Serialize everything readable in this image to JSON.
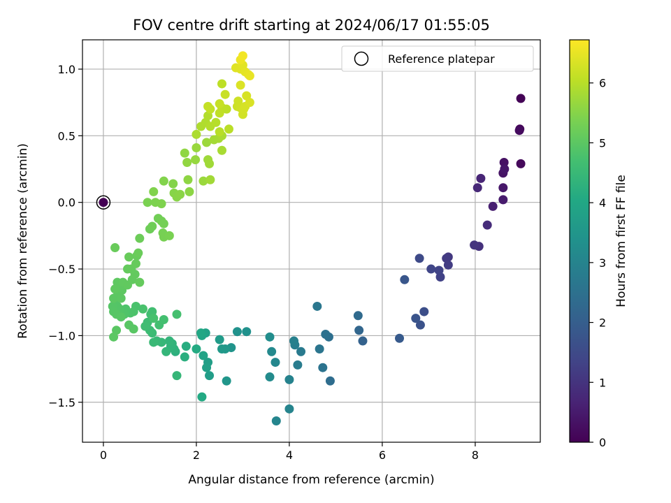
{
  "chart_data": {
    "type": "scatter",
    "title": "FOV centre drift starting at 2024/06/17 01:55:05",
    "xlabel": "Angular distance from reference (arcmin)",
    "ylabel": "Rotation from reference (arcmin)",
    "xlim": [
      -0.45,
      9.4
    ],
    "ylim": [
      -1.8,
      1.22
    ],
    "xticks": [
      0,
      2,
      4,
      6,
      8
    ],
    "xtick_labels": [
      "0",
      "2",
      "4",
      "6",
      "8"
    ],
    "yticks": [
      -1.5,
      -1.0,
      -0.5,
      0.0,
      0.5,
      1.0
    ],
    "ytick_labels": [
      "−1.5",
      "−1.0",
      "−0.5",
      "0.0",
      "0.5",
      "1.0"
    ],
    "grid": true,
    "colormap": "viridis",
    "colorbar": {
      "label": "Hours from first FF file",
      "range": [
        0,
        6.72
      ],
      "ticks": [
        0,
        1,
        2,
        3,
        4,
        5,
        6
      ],
      "tick_labels": [
        "0",
        "1",
        "2",
        "3",
        "4",
        "5",
        "6"
      ]
    },
    "legend": {
      "position": "top-right",
      "entries": [
        "Reference platepar"
      ]
    },
    "reference_point": {
      "x": 0,
      "y": 0,
      "t": 0
    },
    "points": [
      [
        8.98,
        0.78,
        0.05
      ],
      [
        8.96,
        0.55,
        0.1
      ],
      [
        8.98,
        0.29,
        0.15
      ],
      [
        8.95,
        0.54,
        0.2
      ],
      [
        8.62,
        0.3,
        0.3
      ],
      [
        8.6,
        0.22,
        0.35
      ],
      [
        8.63,
        0.25,
        0.4
      ],
      [
        8.6,
        0.11,
        0.45
      ],
      [
        8.6,
        0.02,
        0.5
      ],
      [
        8.38,
        -0.03,
        0.6
      ],
      [
        8.12,
        0.18,
        0.7
      ],
      [
        8.05,
        0.11,
        0.75
      ],
      [
        8.26,
        -0.17,
        0.85
      ],
      [
        8.08,
        -0.33,
        0.95
      ],
      [
        7.98,
        -0.32,
        1.0
      ],
      [
        7.42,
        -0.41,
        1.1
      ],
      [
        7.38,
        -0.42,
        1.15
      ],
      [
        7.42,
        -0.47,
        1.2
      ],
      [
        7.25,
        -0.56,
        1.3
      ],
      [
        7.22,
        -0.51,
        1.35
      ],
      [
        7.05,
        -0.5,
        1.4
      ],
      [
        6.8,
        -0.42,
        1.5
      ],
      [
        6.9,
        -0.82,
        1.6
      ],
      [
        6.82,
        -0.92,
        1.7
      ],
      [
        6.72,
        -0.87,
        1.75
      ],
      [
        6.48,
        -0.58,
        1.8
      ],
      [
        6.37,
        -1.02,
        1.9
      ],
      [
        5.58,
        -1.04,
        2.1
      ],
      [
        5.5,
        -0.96,
        2.2
      ],
      [
        5.48,
        -0.85,
        2.3
      ],
      [
        4.88,
        -1.34,
        2.4
      ],
      [
        4.85,
        -1.01,
        2.45
      ],
      [
        4.78,
        -0.99,
        2.5
      ],
      [
        4.72,
        -1.24,
        2.55
      ],
      [
        4.65,
        -1.1,
        2.6
      ],
      [
        4.6,
        -0.78,
        2.65
      ],
      [
        4.25,
        -1.12,
        2.75
      ],
      [
        4.18,
        -1.22,
        2.8
      ],
      [
        4.12,
        -1.07,
        2.85
      ],
      [
        4.1,
        -1.04,
        2.9
      ],
      [
        4.0,
        -1.33,
        2.95
      ],
      [
        4.0,
        -1.55,
        3.0
      ],
      [
        3.72,
        -1.64,
        3.05
      ],
      [
        3.7,
        -1.2,
        3.1
      ],
      [
        3.62,
        -1.12,
        3.15
      ],
      [
        3.58,
        -1.31,
        3.2
      ],
      [
        3.58,
        -1.01,
        3.25
      ],
      [
        3.08,
        -0.97,
        3.35
      ],
      [
        2.88,
        -0.97,
        3.4
      ],
      [
        2.75,
        -1.09,
        3.45
      ],
      [
        2.65,
        -1.34,
        3.5
      ],
      [
        2.62,
        -1.1,
        3.55
      ],
      [
        2.55,
        -1.1,
        3.6
      ],
      [
        2.5,
        -1.03,
        3.65
      ],
      [
        2.28,
        -1.3,
        3.7
      ],
      [
        2.25,
        -1.2,
        3.75
      ],
      [
        2.22,
        -1.24,
        3.8
      ],
      [
        2.2,
        -0.98,
        3.85
      ],
      [
        2.15,
        -1.15,
        3.9
      ],
      [
        2.12,
        -1.0,
        3.95
      ],
      [
        2.1,
        -0.98,
        4.0
      ],
      [
        2.12,
        -1.46,
        4.05
      ],
      [
        2.0,
        -1.1,
        4.1
      ],
      [
        1.78,
        -1.08,
        4.15
      ],
      [
        1.75,
        -1.16,
        4.2
      ],
      [
        1.55,
        -1.12,
        4.25
      ],
      [
        1.52,
        -1.1,
        4.3
      ],
      [
        1.48,
        -1.06,
        4.32
      ],
      [
        1.45,
        -1.08,
        4.35
      ],
      [
        1.42,
        -1.04,
        4.38
      ],
      [
        1.35,
        -1.12,
        4.4
      ],
      [
        1.58,
        -1.3,
        4.42
      ],
      [
        1.25,
        -1.05,
        4.45
      ],
      [
        1.15,
        -1.04,
        4.48
      ],
      [
        1.08,
        -1.05,
        4.5
      ],
      [
        1.05,
        -0.98,
        4.55
      ],
      [
        1.0,
        -0.96,
        4.58
      ],
      [
        0.95,
        -0.9,
        4.6
      ],
      [
        0.9,
        -0.93,
        4.62
      ],
      [
        1.02,
        -0.84,
        4.64
      ],
      [
        1.05,
        -0.82,
        4.66
      ],
      [
        1.2,
        -0.92,
        4.68
      ],
      [
        1.3,
        -0.88,
        4.7
      ],
      [
        1.58,
        -0.84,
        4.72
      ],
      [
        1.08,
        -0.87,
        4.74
      ],
      [
        0.85,
        -0.8,
        4.76
      ],
      [
        0.7,
        -0.78,
        4.78
      ],
      [
        0.65,
        -0.82,
        4.8
      ],
      [
        0.58,
        -0.83,
        4.82
      ],
      [
        0.48,
        -0.8,
        4.84
      ],
      [
        0.45,
        -0.84,
        4.86
      ],
      [
        0.35,
        -0.8,
        4.88
      ],
      [
        0.3,
        -0.78,
        4.9
      ],
      [
        0.25,
        -0.76,
        4.9
      ],
      [
        0.2,
        -0.78,
        4.92
      ],
      [
        0.22,
        -0.82,
        4.93
      ],
      [
        0.28,
        -0.84,
        4.94
      ],
      [
        0.38,
        -0.86,
        4.95
      ],
      [
        0.55,
        -0.92,
        4.96
      ],
      [
        0.65,
        -0.95,
        4.97
      ],
      [
        0.28,
        -0.96,
        4.98
      ],
      [
        0.22,
        -1.01,
        4.99
      ],
      [
        0.22,
        -0.72,
        5.0
      ],
      [
        0.3,
        -0.7,
        5.0
      ],
      [
        0.38,
        -0.72,
        5.01
      ],
      [
        0.4,
        -0.66,
        5.02
      ],
      [
        0.35,
        -0.64,
        5.03
      ],
      [
        0.3,
        -0.6,
        5.04
      ],
      [
        0.25,
        -0.65,
        5.05
      ],
      [
        0.42,
        -0.6,
        5.06
      ],
      [
        0.52,
        -0.62,
        5.07
      ],
      [
        0.62,
        -0.58,
        5.08
      ],
      [
        0.68,
        -0.54,
        5.09
      ],
      [
        0.6,
        -0.5,
        5.1
      ],
      [
        0.52,
        -0.5,
        5.11
      ],
      [
        0.78,
        -0.6,
        5.12
      ],
      [
        0.7,
        -0.46,
        5.13
      ],
      [
        0.72,
        -0.4,
        5.14
      ],
      [
        0.55,
        -0.41,
        5.15
      ],
      [
        0.25,
        -0.34,
        5.16
      ],
      [
        0.75,
        -0.38,
        5.18
      ],
      [
        0.78,
        -0.27,
        5.2
      ],
      [
        1.0,
        -0.2,
        5.22
      ],
      [
        1.05,
        -0.18,
        5.24
      ],
      [
        1.18,
        -0.12,
        5.26
      ],
      [
        1.25,
        -0.14,
        5.28
      ],
      [
        1.3,
        -0.16,
        5.3
      ],
      [
        1.28,
        -0.23,
        5.32
      ],
      [
        1.3,
        -0.26,
        5.34
      ],
      [
        1.42,
        -0.25,
        5.36
      ],
      [
        0.95,
        0.0,
        5.38
      ],
      [
        1.12,
        0.0,
        5.4
      ],
      [
        1.25,
        -0.01,
        5.42
      ],
      [
        1.08,
        0.08,
        5.44
      ],
      [
        1.3,
        0.16,
        5.46
      ],
      [
        1.5,
        0.14,
        5.48
      ],
      [
        1.52,
        0.07,
        5.5
      ],
      [
        1.58,
        0.04,
        5.52
      ],
      [
        1.65,
        0.06,
        5.54
      ],
      [
        1.85,
        0.08,
        5.56
      ],
      [
        1.82,
        0.17,
        5.58
      ],
      [
        1.75,
        0.37,
        5.6
      ],
      [
        1.8,
        0.3,
        5.62
      ],
      [
        1.98,
        0.32,
        5.66
      ],
      [
        2.0,
        0.41,
        5.68
      ],
      [
        2.15,
        0.16,
        5.7
      ],
      [
        2.22,
        0.45,
        5.72
      ],
      [
        2.25,
        0.32,
        5.74
      ],
      [
        2.28,
        0.29,
        5.76
      ],
      [
        2.3,
        0.17,
        5.78
      ],
      [
        2.38,
        0.47,
        5.8
      ],
      [
        2.48,
        0.48,
        5.82
      ],
      [
        2.55,
        0.39,
        5.84
      ],
      [
        2.55,
        0.5,
        5.86
      ],
      [
        2.0,
        0.51,
        5.88
      ],
      [
        2.1,
        0.57,
        5.9
      ],
      [
        2.2,
        0.6,
        5.92
      ],
      [
        2.25,
        0.65,
        5.94
      ],
      [
        2.3,
        0.57,
        5.96
      ],
      [
        2.42,
        0.6,
        5.98
      ],
      [
        2.5,
        0.53,
        6.0
      ],
      [
        2.7,
        0.55,
        6.02
      ],
      [
        2.65,
        0.7,
        6.04
      ],
      [
        2.55,
        0.71,
        6.06
      ],
      [
        2.5,
        0.67,
        6.08
      ],
      [
        2.3,
        0.7,
        6.1
      ],
      [
        2.25,
        0.72,
        6.12
      ],
      [
        2.5,
        0.74,
        6.14
      ],
      [
        2.62,
        0.81,
        6.16
      ],
      [
        2.88,
        0.72,
        6.2
      ],
      [
        2.9,
        0.76,
        6.22
      ],
      [
        2.95,
        0.71,
        6.24
      ],
      [
        3.0,
        0.66,
        6.26
      ],
      [
        3.02,
        0.7,
        6.28
      ],
      [
        3.05,
        0.72,
        6.3
      ],
      [
        3.08,
        0.8,
        6.32
      ],
      [
        3.15,
        0.75,
        6.34
      ],
      [
        2.95,
        0.88,
        6.36
      ],
      [
        2.85,
        1.01,
        6.4
      ],
      [
        2.95,
        1.0,
        6.42
      ],
      [
        3.0,
        1.03,
        6.44
      ],
      [
        3.05,
        0.98,
        6.46
      ],
      [
        3.12,
        0.96,
        6.48
      ],
      [
        3.15,
        0.95,
        6.5
      ],
      [
        2.95,
        1.07,
        6.55
      ],
      [
        3.0,
        1.1,
        6.6
      ],
      [
        2.55,
        0.89,
        6.05
      ]
    ]
  }
}
